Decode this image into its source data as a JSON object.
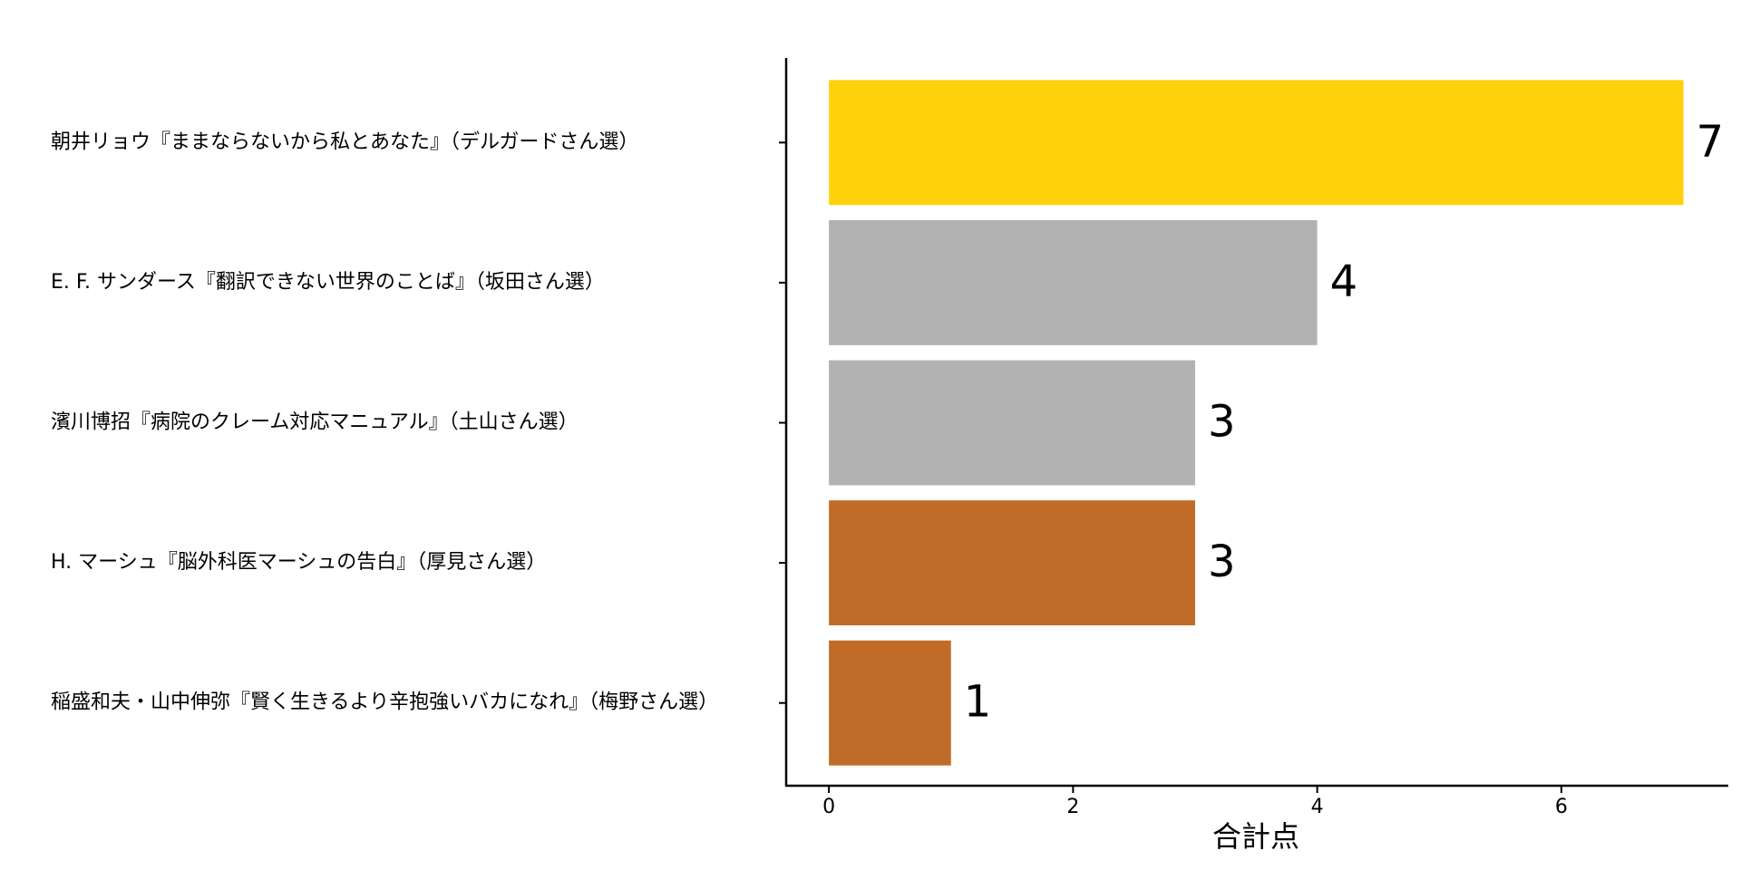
{
  "chart_data": {
    "type": "barh",
    "categories": [
      "朝井リョウ『ままならないから私とあなた』（デルガードさん選）",
      "E. F. サンダース『翻訳できない世界のことば』（坂田さん選）",
      "濱川博招『病院のクレーム対応マニュアル』（土山さん選）",
      "H. マーシュ『脳外科医マーシュの告白』（厚見さん選）",
      "稲盛和夫・山中伸弥『賢く生きるより辛抱強いバカになれ』（梅野さん選）"
    ],
    "values": [
      7,
      4,
      3,
      3,
      1
    ],
    "colors": [
      "#fdd20c",
      "#b2b2b2",
      "#b2b2b2",
      "#c06c28",
      "#c06c28"
    ],
    "xlabel": "合計点",
    "xlim": [
      -0.35,
      7.36
    ],
    "xticks": [
      0,
      2,
      4,
      6
    ],
    "grid": false
  }
}
